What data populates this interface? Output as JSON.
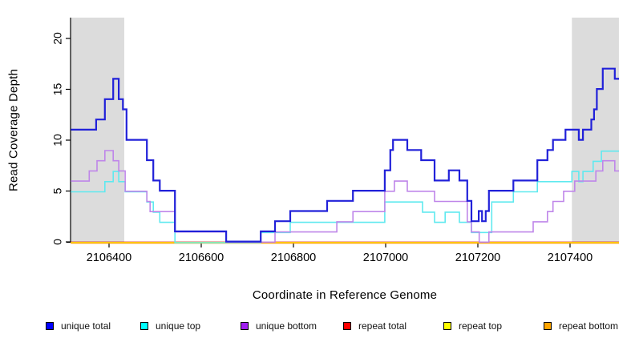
{
  "chart_data": {
    "type": "line",
    "subtype": "step",
    "title": "",
    "xlabel": "Coordinate in Reference Genome",
    "ylabel": "Read Coverage Depth",
    "xlim": [
      2106317,
      2107506
    ],
    "ylim": [
      0,
      22
    ],
    "x_ticks": [
      2106400,
      2106600,
      2106800,
      2107000,
      2107200,
      2107400
    ],
    "y_ticks": [
      0,
      5,
      10,
      15,
      20
    ],
    "grid": false,
    "legend_position": "bottom",
    "shade_color": "#DCDCDC",
    "shaded_regions": [
      [
        2106317,
        2106433
      ],
      [
        2107404,
        2107506
      ]
    ],
    "series": [
      {
        "name": "unique total",
        "color": "#0000FF",
        "line_color": "#2121D9",
        "steps": [
          [
            2106317,
            11
          ],
          [
            2106372,
            12
          ],
          [
            2106391,
            14
          ],
          [
            2106409,
            16
          ],
          [
            2106421,
            14
          ],
          [
            2106430,
            13
          ],
          [
            2106438,
            10
          ],
          [
            2106482,
            8
          ],
          [
            2106496,
            6
          ],
          [
            2106510,
            5
          ],
          [
            2106543,
            1
          ],
          [
            2106654,
            0
          ],
          [
            2106729,
            1
          ],
          [
            2106760,
            2
          ],
          [
            2106793,
            3
          ],
          [
            2106873,
            4
          ],
          [
            2106929,
            5
          ],
          [
            2106998,
            7
          ],
          [
            2107010,
            9
          ],
          [
            2107016,
            10
          ],
          [
            2107047,
            9
          ],
          [
            2107077,
            8
          ],
          [
            2107106,
            6
          ],
          [
            2107137,
            7
          ],
          [
            2107160,
            6
          ],
          [
            2107177,
            4
          ],
          [
            2107186,
            2
          ],
          [
            2107202,
            3
          ],
          [
            2107209,
            2
          ],
          [
            2107217,
            3
          ],
          [
            2107224,
            5
          ],
          [
            2107277,
            6
          ],
          [
            2107329,
            8
          ],
          [
            2107351,
            9
          ],
          [
            2107363,
            10
          ],
          [
            2107390,
            11
          ],
          [
            2107419,
            10
          ],
          [
            2107428,
            11
          ],
          [
            2107446,
            12
          ],
          [
            2107452,
            13
          ],
          [
            2107458,
            15
          ],
          [
            2107471,
            17
          ],
          [
            2107497,
            16
          ],
          [
            2107506,
            16
          ]
        ]
      },
      {
        "name": "unique top",
        "color": "#00FFFF",
        "line_color": "#5FE9EF",
        "steps": [
          [
            2106317,
            5
          ],
          [
            2106391,
            6
          ],
          [
            2106409,
            7
          ],
          [
            2106421,
            6
          ],
          [
            2106435,
            5
          ],
          [
            2106482,
            4
          ],
          [
            2106496,
            3
          ],
          [
            2106510,
            2
          ],
          [
            2106543,
            0
          ],
          [
            2106729,
            1
          ],
          [
            2106793,
            2
          ],
          [
            2106998,
            4
          ],
          [
            2107080,
            3
          ],
          [
            2107106,
            2
          ],
          [
            2107129,
            3
          ],
          [
            2107160,
            2
          ],
          [
            2107186,
            1
          ],
          [
            2107230,
            4
          ],
          [
            2107277,
            5
          ],
          [
            2107329,
            6
          ],
          [
            2107404,
            7
          ],
          [
            2107419,
            6
          ],
          [
            2107428,
            7
          ],
          [
            2107450,
            8
          ],
          [
            2107468,
            9
          ],
          [
            2107506,
            9
          ]
        ]
      },
      {
        "name": "unique bottom",
        "color": "#A020F0",
        "line_color": "#BF86E9",
        "steps": [
          [
            2106317,
            6
          ],
          [
            2106357,
            7
          ],
          [
            2106374,
            8
          ],
          [
            2106391,
            9
          ],
          [
            2106409,
            8
          ],
          [
            2106421,
            7
          ],
          [
            2106435,
            5
          ],
          [
            2106482,
            4
          ],
          [
            2106489,
            3
          ],
          [
            2106543,
            1
          ],
          [
            2106654,
            0
          ],
          [
            2106760,
            1
          ],
          [
            2106894,
            2
          ],
          [
            2106929,
            3
          ],
          [
            2106998,
            5
          ],
          [
            2107019,
            6
          ],
          [
            2107047,
            5
          ],
          [
            2107106,
            4
          ],
          [
            2107177,
            2
          ],
          [
            2107186,
            1
          ],
          [
            2107203,
            0
          ],
          [
            2107224,
            1
          ],
          [
            2107320,
            2
          ],
          [
            2107351,
            3
          ],
          [
            2107363,
            4
          ],
          [
            2107386,
            5
          ],
          [
            2107410,
            6
          ],
          [
            2107456,
            7
          ],
          [
            2107471,
            8
          ],
          [
            2107497,
            7
          ],
          [
            2107506,
            7
          ]
        ]
      },
      {
        "name": "repeat total",
        "color": "#FF0000",
        "line_color": "#FF0000",
        "steps": [
          [
            2106317,
            0
          ],
          [
            2107506,
            0
          ]
        ]
      },
      {
        "name": "repeat top",
        "color": "#FFFF00",
        "line_color": "#FFFF00",
        "steps": [
          [
            2106317,
            0
          ],
          [
            2107506,
            0
          ]
        ]
      },
      {
        "name": "repeat bottom",
        "color": "#FFA500",
        "line_color": "#FFA500",
        "steps": [
          [
            2106317,
            0
          ],
          [
            2107506,
            0
          ]
        ]
      }
    ]
  }
}
